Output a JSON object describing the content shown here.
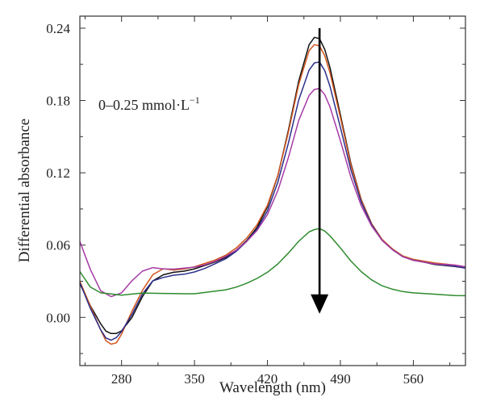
{
  "chart_data": {
    "type": "line",
    "title": "",
    "xlabel": "Wavelength (nm)",
    "ylabel": "Differential absorbance",
    "annotation": {
      "text": "0–0.25 mmol·L",
      "superscript": "−1"
    },
    "xlim": [
      240,
      610
    ],
    "ylim": [
      -0.04,
      0.25
    ],
    "xticks": [
      280,
      350,
      420,
      490,
      560
    ],
    "xtick_labels": [
      "280",
      "350",
      "420",
      "490",
      "560"
    ],
    "yticks": [
      0.0,
      0.06,
      0.12,
      0.18,
      0.24
    ],
    "ytick_labels": [
      "0.00",
      "0.06",
      "0.12",
      "0.18",
      "0.24"
    ],
    "arrow": {
      "x": 470,
      "y_start": 0.24,
      "y_end": 0.003,
      "meaning": "decreasing absorbance with increasing concentration"
    },
    "grid": false,
    "series": [
      {
        "color": "#111111",
        "x": [
          240,
          250,
          260,
          265,
          270,
          275,
          280,
          290,
          300,
          310,
          320,
          330,
          340,
          350,
          360,
          370,
          380,
          390,
          400,
          410,
          420,
          430,
          440,
          450,
          460,
          465,
          470,
          475,
          480,
          490,
          500,
          510,
          520,
          530,
          540,
          550,
          560,
          580,
          600,
          610
        ],
        "y": [
          0.028,
          0.01,
          -0.005,
          -0.011,
          -0.013,
          -0.013,
          -0.011,
          0.0,
          0.017,
          0.03,
          0.035,
          0.037,
          0.038,
          0.04,
          0.043,
          0.046,
          0.05,
          0.056,
          0.064,
          0.075,
          0.092,
          0.118,
          0.155,
          0.196,
          0.226,
          0.232,
          0.231,
          0.222,
          0.207,
          0.168,
          0.128,
          0.098,
          0.078,
          0.065,
          0.057,
          0.051,
          0.048,
          0.044,
          0.042,
          0.041
        ]
      },
      {
        "color": "#d2561e",
        "x": [
          240,
          250,
          260,
          265,
          270,
          275,
          280,
          290,
          300,
          310,
          320,
          330,
          340,
          350,
          360,
          370,
          380,
          390,
          400,
          410,
          420,
          430,
          440,
          450,
          460,
          465,
          470,
          475,
          480,
          490,
          500,
          510,
          520,
          530,
          540,
          550,
          560,
          580,
          600,
          610
        ],
        "y": [
          0.03,
          0.01,
          -0.01,
          -0.019,
          -0.022,
          -0.021,
          -0.014,
          0.005,
          0.022,
          0.035,
          0.04,
          0.039,
          0.04,
          0.042,
          0.045,
          0.048,
          0.052,
          0.058,
          0.066,
          0.077,
          0.093,
          0.118,
          0.153,
          0.193,
          0.221,
          0.226,
          0.225,
          0.217,
          0.203,
          0.166,
          0.127,
          0.098,
          0.078,
          0.065,
          0.057,
          0.051,
          0.048,
          0.045,
          0.043,
          0.042
        ]
      },
      {
        "color": "#2c2f8a",
        "x": [
          240,
          250,
          260,
          265,
          270,
          275,
          280,
          290,
          300,
          310,
          320,
          330,
          340,
          350,
          360,
          370,
          380,
          390,
          400,
          410,
          420,
          430,
          440,
          450,
          460,
          465,
          470,
          475,
          480,
          490,
          500,
          510,
          520,
          530,
          540,
          550,
          560,
          580,
          600,
          610
        ],
        "y": [
          0.029,
          0.008,
          -0.01,
          -0.017,
          -0.019,
          -0.017,
          -0.012,
          0.002,
          0.019,
          0.03,
          0.033,
          0.035,
          0.036,
          0.038,
          0.041,
          0.045,
          0.049,
          0.055,
          0.063,
          0.073,
          0.088,
          0.112,
          0.144,
          0.18,
          0.205,
          0.211,
          0.212,
          0.205,
          0.192,
          0.158,
          0.123,
          0.096,
          0.077,
          0.064,
          0.056,
          0.05,
          0.047,
          0.044,
          0.042,
          0.041
        ]
      },
      {
        "color": "#a63ba6",
        "x": [
          240,
          250,
          260,
          270,
          280,
          290,
          300,
          310,
          320,
          330,
          340,
          350,
          360,
          370,
          380,
          390,
          400,
          410,
          420,
          430,
          440,
          450,
          460,
          465,
          470,
          475,
          480,
          490,
          500,
          510,
          520,
          530,
          540,
          550,
          560,
          580,
          600,
          610
        ],
        "y": [
          0.063,
          0.04,
          0.022,
          0.017,
          0.02,
          0.03,
          0.038,
          0.041,
          0.04,
          0.04,
          0.041,
          0.042,
          0.044,
          0.047,
          0.051,
          0.056,
          0.063,
          0.072,
          0.085,
          0.105,
          0.132,
          0.163,
          0.184,
          0.189,
          0.19,
          0.185,
          0.175,
          0.147,
          0.117,
          0.093,
          0.076,
          0.064,
          0.056,
          0.05,
          0.047,
          0.044,
          0.043,
          0.042
        ]
      },
      {
        "color": "#2e8b2e",
        "x": [
          240,
          250,
          260,
          270,
          280,
          290,
          300,
          310,
          320,
          330,
          340,
          350,
          360,
          370,
          380,
          390,
          400,
          410,
          420,
          430,
          440,
          450,
          460,
          465,
          470,
          475,
          480,
          490,
          500,
          510,
          520,
          530,
          540,
          550,
          560,
          580,
          600,
          610
        ],
        "y": [
          0.038,
          0.025,
          0.02,
          0.019,
          0.018,
          0.019,
          0.02,
          0.02,
          0.02,
          0.02,
          0.02,
          0.02,
          0.021,
          0.022,
          0.023,
          0.025,
          0.028,
          0.032,
          0.037,
          0.044,
          0.053,
          0.063,
          0.071,
          0.073,
          0.074,
          0.072,
          0.068,
          0.058,
          0.047,
          0.038,
          0.031,
          0.026,
          0.023,
          0.021,
          0.02,
          0.019,
          0.018,
          0.018
        ]
      }
    ]
  }
}
